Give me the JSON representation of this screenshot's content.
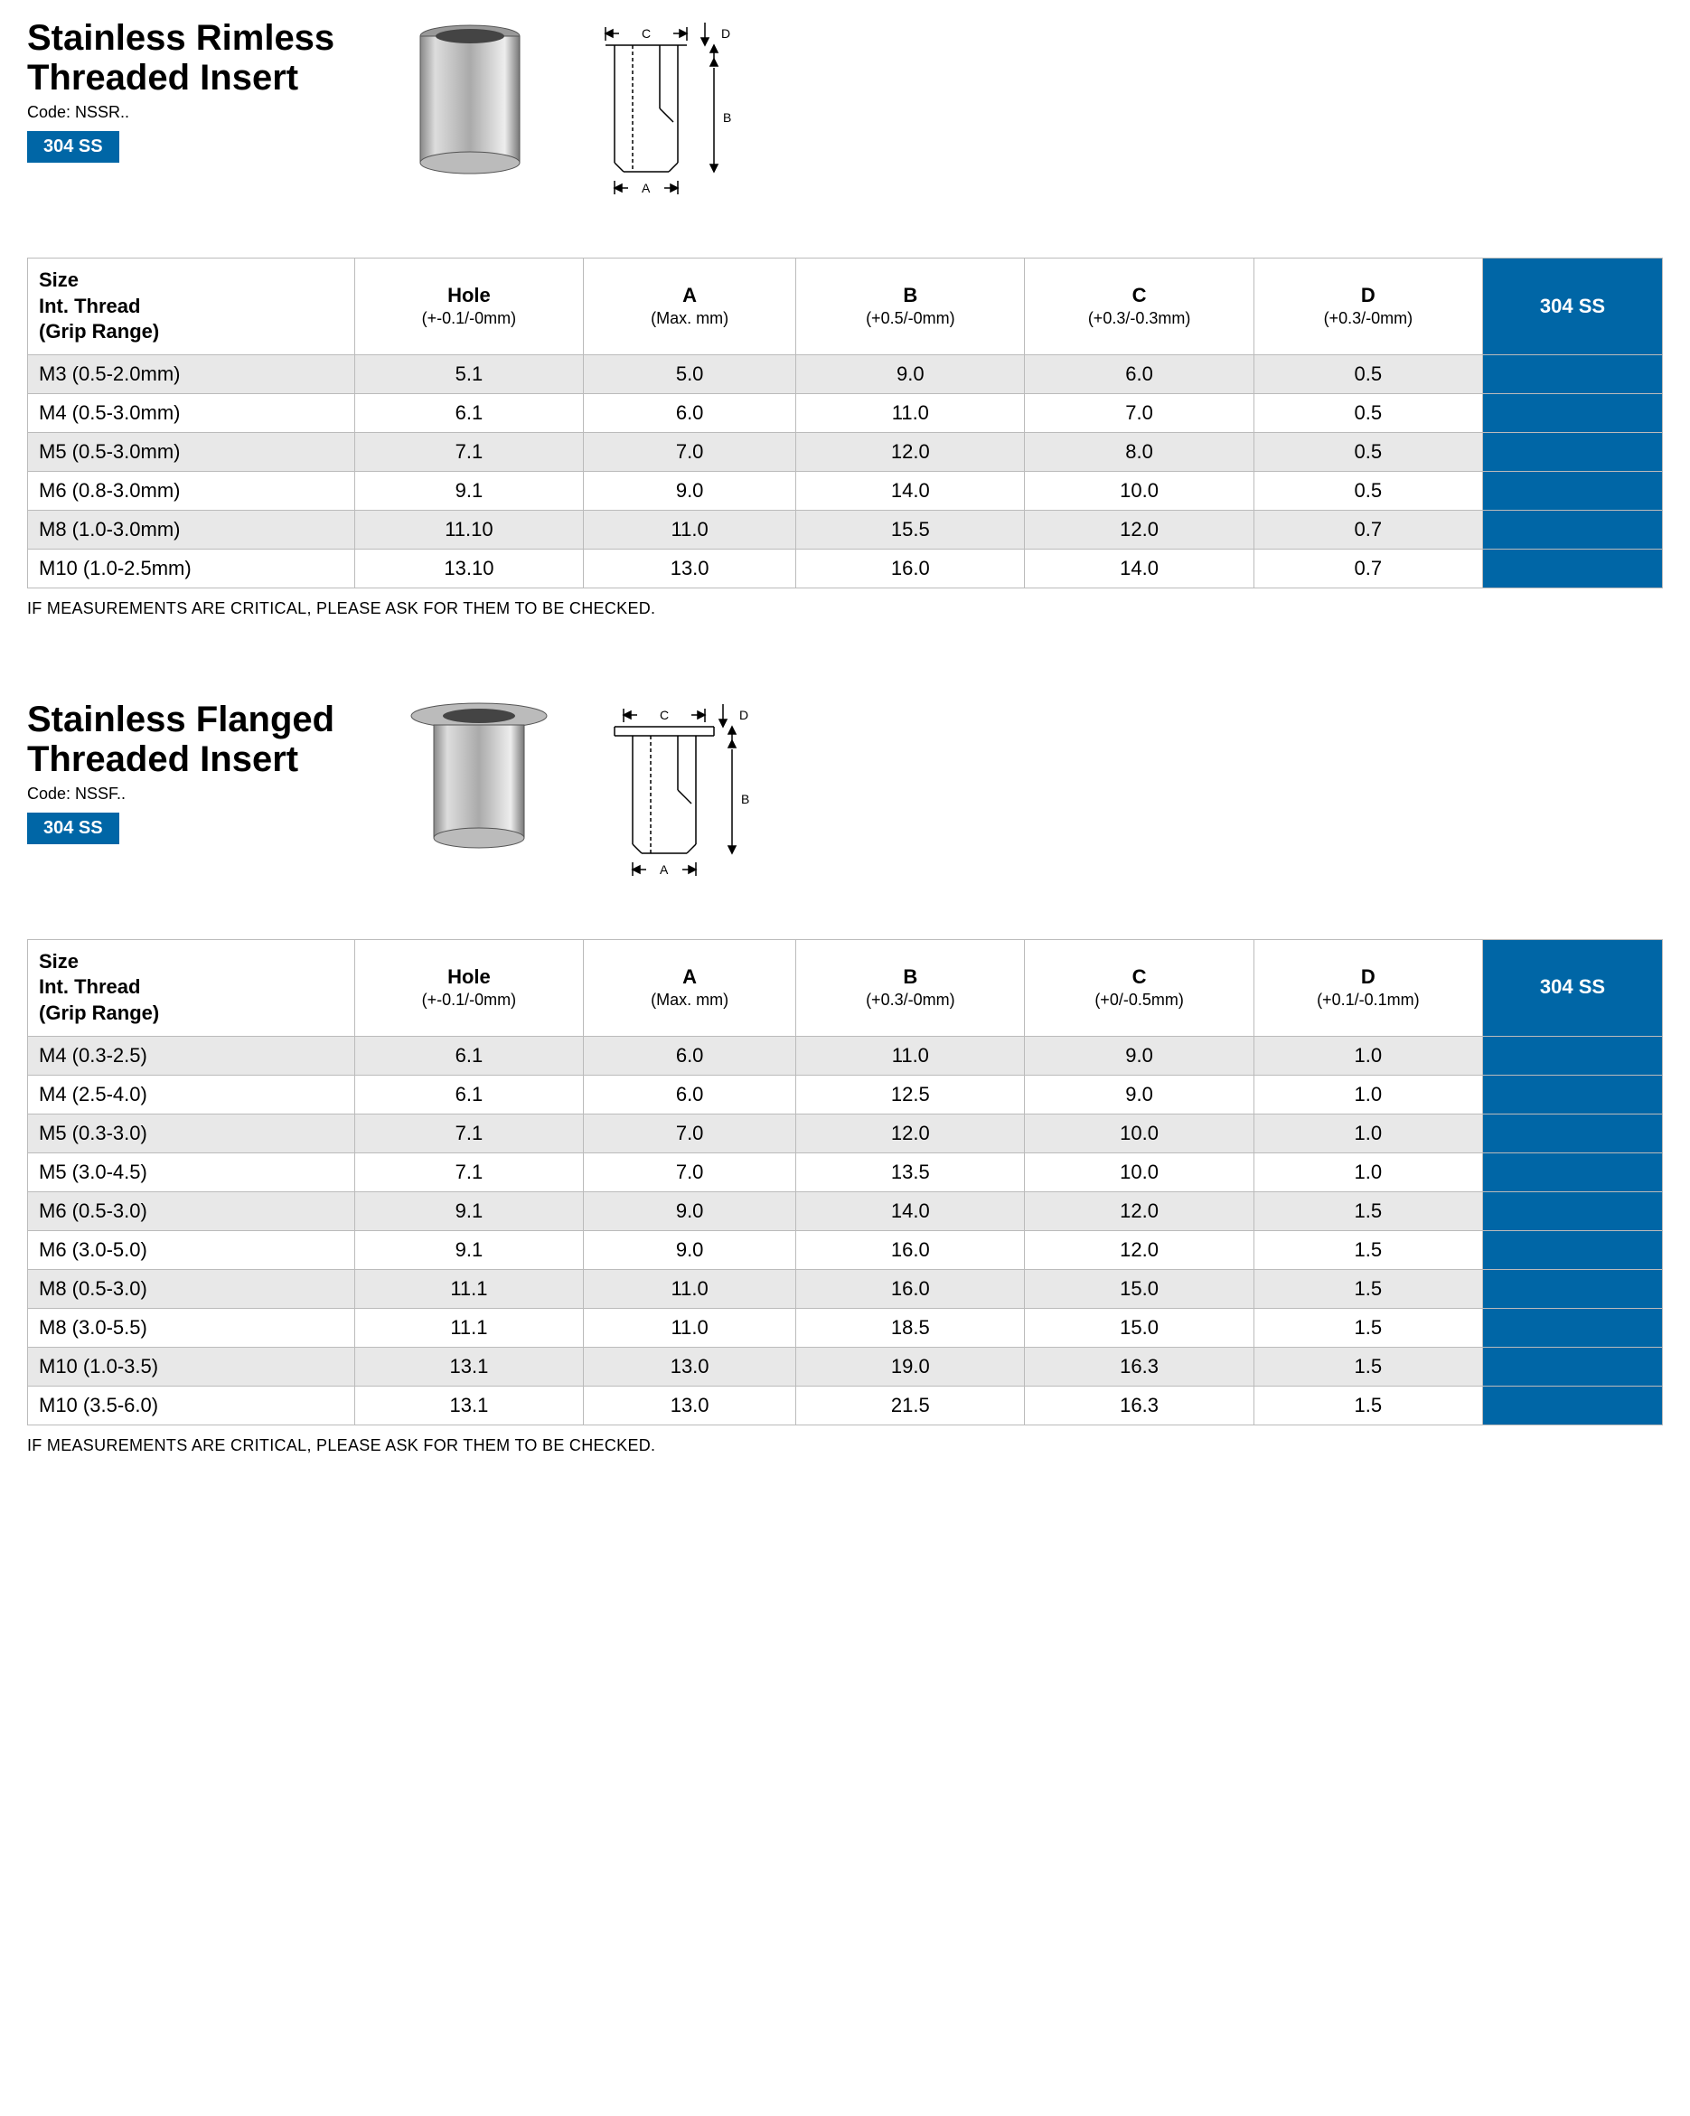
{
  "footnote": "IF MEASUREMENTS ARE CRITICAL, PLEASE ASK FOR THEM TO BE CHECKED.",
  "products": [
    {
      "title_line1": "Stainless Rimless",
      "title_line2": "Threaded Insert",
      "code": "Code: NSSR..",
      "badge": "304 SS",
      "diagram_type": "rimless",
      "columns": {
        "size": {
          "label": "Size",
          "sub1": "Int. Thread",
          "sub2": "(Grip Range)"
        },
        "hole": {
          "label": "Hole",
          "sub": "(+-0.1/-0mm)"
        },
        "a": {
          "label": "A",
          "sub": "(Max. mm)"
        },
        "b": {
          "label": "B",
          "sub": "(+0.5/-0mm)"
        },
        "c": {
          "label": "C",
          "sub": "(+0.3/-0.3mm)"
        },
        "d": {
          "label": "D",
          "sub": "(+0.3/-0mm)"
        },
        "material": "304 SS"
      },
      "rows": [
        {
          "size": "M3 (0.5-2.0mm)",
          "hole": "5.1",
          "a": "5.0",
          "b": "9.0",
          "c": "6.0",
          "d": "0.5"
        },
        {
          "size": "M4 (0.5-3.0mm)",
          "hole": "6.1",
          "a": "6.0",
          "b": "11.0",
          "c": "7.0",
          "d": "0.5"
        },
        {
          "size": "M5 (0.5-3.0mm)",
          "hole": "7.1",
          "a": "7.0",
          "b": "12.0",
          "c": "8.0",
          "d": "0.5"
        },
        {
          "size": "M6 (0.8-3.0mm)",
          "hole": "9.1",
          "a": "9.0",
          "b": "14.0",
          "c": "10.0",
          "d": "0.5"
        },
        {
          "size": "M8 (1.0-3.0mm)",
          "hole": "11.10",
          "a": "11.0",
          "b": "15.5",
          "c": "12.0",
          "d": "0.7"
        },
        {
          "size": "M10 (1.0-2.5mm)",
          "hole": "13.10",
          "a": "13.0",
          "b": "16.0",
          "c": "14.0",
          "d": "0.7"
        }
      ]
    },
    {
      "title_line1": "Stainless Flanged",
      "title_line2": "Threaded Insert",
      "code": "Code: NSSF..",
      "badge": "304 SS",
      "diagram_type": "flanged",
      "columns": {
        "size": {
          "label": "Size",
          "sub1": "Int. Thread",
          "sub2": "(Grip Range)"
        },
        "hole": {
          "label": "Hole",
          "sub": "(+-0.1/-0mm)"
        },
        "a": {
          "label": "A",
          "sub": "(Max. mm)"
        },
        "b": {
          "label": "B",
          "sub": "(+0.3/-0mm)"
        },
        "c": {
          "label": "C",
          "sub": "(+0/-0.5mm)"
        },
        "d": {
          "label": "D",
          "sub": "(+0.1/-0.1mm)"
        },
        "material": "304 SS"
      },
      "rows": [
        {
          "size": "M4 (0.3-2.5)",
          "hole": "6.1",
          "a": "6.0",
          "b": "11.0",
          "c": "9.0",
          "d": "1.0"
        },
        {
          "size": "M4 (2.5-4.0)",
          "hole": "6.1",
          "a": "6.0",
          "b": "12.5",
          "c": "9.0",
          "d": "1.0"
        },
        {
          "size": "M5 (0.3-3.0)",
          "hole": "7.1",
          "a": "7.0",
          "b": "12.0",
          "c": "10.0",
          "d": "1.0"
        },
        {
          "size": "M5 (3.0-4.5)",
          "hole": "7.1",
          "a": "7.0",
          "b": "13.5",
          "c": "10.0",
          "d": "1.0"
        },
        {
          "size": "M6 (0.5-3.0)",
          "hole": "9.1",
          "a": "9.0",
          "b": "14.0",
          "c": "12.0",
          "d": "1.5"
        },
        {
          "size": "M6 (3.0-5.0)",
          "hole": "9.1",
          "a": "9.0",
          "b": "16.0",
          "c": "12.0",
          "d": "1.5"
        },
        {
          "size": "M8 (0.5-3.0)",
          "hole": "11.1",
          "a": "11.0",
          "b": "16.0",
          "c": "15.0",
          "d": "1.5"
        },
        {
          "size": "M8 (3.0-5.5)",
          "hole": "11.1",
          "a": "11.0",
          "b": "18.5",
          "c": "15.0",
          "d": "1.5"
        },
        {
          "size": "M10 (1.0-3.5)",
          "hole": "13.1",
          "a": "13.0",
          "b": "19.0",
          "c": "16.3",
          "d": "1.5"
        },
        {
          "size": "M10 (3.5-6.0)",
          "hole": "13.1",
          "a": "13.0",
          "b": "21.5",
          "c": "16.3",
          "d": "1.5"
        }
      ]
    }
  ]
}
